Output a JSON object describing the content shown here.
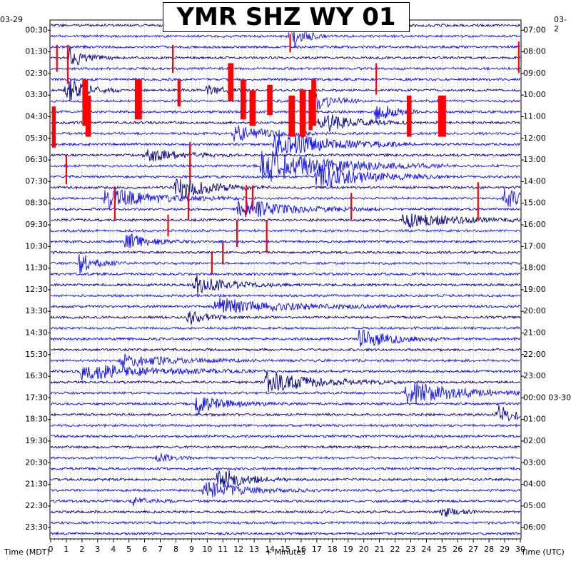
{
  "chart_data": {
    "type": "helicorder",
    "title": "YMR SHZ WY 01",
    "start_date_left": "03-29",
    "start_date_right": "03-2",
    "x_axis": {
      "label": "+ Minutes",
      "ticks": [
        "0",
        "1",
        "2",
        "3",
        "4",
        "5",
        "6",
        "7",
        "8",
        "9",
        "10",
        "11",
        "12",
        "13",
        "14",
        "15",
        "16",
        "17",
        "18",
        "19",
        "20",
        "21",
        "22",
        "23",
        "24",
        "25",
        "26",
        "27",
        "28",
        "29",
        "30"
      ],
      "range_minutes": [
        0,
        30
      ]
    },
    "left_axis": {
      "label": "Time (MDT)",
      "ticks": [
        "00:30",
        "01:30",
        "02:30",
        "03:30",
        "04:30",
        "05:30",
        "06:30",
        "07:30",
        "08:30",
        "09:30",
        "10:30",
        "11:30",
        "12:30",
        "13:30",
        "14:30",
        "15:30",
        "16:30",
        "17:30",
        "18:30",
        "19:30",
        "20:30",
        "21:30",
        "22:30",
        "23:30"
      ]
    },
    "right_axis": {
      "label": "Time (UTC)",
      "ticks": [
        "07:00",
        "08:00",
        "09:00",
        "10:00",
        "11:00",
        "12:00",
        "13:00",
        "14:00",
        "15:00",
        "16:00",
        "17:00",
        "18:00",
        "19:00",
        "20:00",
        "21:00",
        "22:00",
        "23:00",
        "00:00 03-30",
        "01:00",
        "02:00",
        "03:00",
        "04:00",
        "05:00",
        "06:00"
      ]
    },
    "trace_count": 48,
    "minutes_per_trace": 30,
    "trace_colors": [
      "#000080",
      "#1515e6",
      "#0000ff"
    ],
    "clip_color": "#ff0000",
    "grid": true,
    "events": [
      {
        "trace": 1,
        "minute": 15.3,
        "amp": 3.5,
        "dur": 0.8
      },
      {
        "trace": 3,
        "minute": 1.2,
        "amp": 2.5,
        "dur": 1.0
      },
      {
        "trace": 6,
        "minute": 1.0,
        "amp": 3.0,
        "dur": 1.2
      },
      {
        "trace": 6,
        "minute": 10.0,
        "amp": 1.5,
        "dur": 1.0
      },
      {
        "trace": 7,
        "minute": 16.8,
        "amp": 3.0,
        "dur": 1.0
      },
      {
        "trace": 8,
        "minute": 20.8,
        "amp": 2.5,
        "dur": 1.0
      },
      {
        "trace": 9,
        "minute": 17.2,
        "amp": 2.5,
        "dur": 2.0
      },
      {
        "trace": 10,
        "minute": 11.7,
        "amp": 2.0,
        "dur": 2.0
      },
      {
        "trace": 11,
        "minute": 14.3,
        "amp": 3.5,
        "dur": 3.0
      },
      {
        "trace": 12,
        "minute": 6.0,
        "amp": 1.8,
        "dur": 2.0
      },
      {
        "trace": 13,
        "minute": 13.5,
        "amp": 4.0,
        "dur": 4.0
      },
      {
        "trace": 14,
        "minute": 17.0,
        "amp": 3.0,
        "dur": 3.0
      },
      {
        "trace": 15,
        "minute": 8.0,
        "amp": 3.0,
        "dur": 2.0
      },
      {
        "trace": 16,
        "minute": 3.5,
        "amp": 2.5,
        "dur": 3.0
      },
      {
        "trace": 16,
        "minute": 29.0,
        "amp": 2.5,
        "dur": 2.0
      },
      {
        "trace": 17,
        "minute": 12.0,
        "amp": 2.5,
        "dur": 3.0
      },
      {
        "trace": 18,
        "minute": 22.5,
        "amp": 2.0,
        "dur": 3.0
      },
      {
        "trace": 20,
        "minute": 4.8,
        "amp": 2.0,
        "dur": 1.5
      },
      {
        "trace": 22,
        "minute": 1.8,
        "amp": 2.5,
        "dur": 1.0
      },
      {
        "trace": 24,
        "minute": 9.2,
        "amp": 2.5,
        "dur": 2.0
      },
      {
        "trace": 26,
        "minute": 10.5,
        "amp": 2.0,
        "dur": 4.0
      },
      {
        "trace": 27,
        "minute": 8.8,
        "amp": 1.8,
        "dur": 1.0
      },
      {
        "trace": 29,
        "minute": 19.7,
        "amp": 2.2,
        "dur": 2.0
      },
      {
        "trace": 31,
        "minute": 4.5,
        "amp": 1.5,
        "dur": 3.0
      },
      {
        "trace": 32,
        "minute": 2.0,
        "amp": 2.0,
        "dur": 4.0
      },
      {
        "trace": 33,
        "minute": 13.8,
        "amp": 2.5,
        "dur": 3.0
      },
      {
        "trace": 34,
        "minute": 22.7,
        "amp": 3.0,
        "dur": 3.0
      },
      {
        "trace": 35,
        "minute": 9.3,
        "amp": 2.0,
        "dur": 2.0
      },
      {
        "trace": 36,
        "minute": 28.5,
        "amp": 2.0,
        "dur": 1.5
      },
      {
        "trace": 40,
        "minute": 6.8,
        "amp": 1.5,
        "dur": 0.8
      },
      {
        "trace": 42,
        "minute": 10.7,
        "amp": 3.0,
        "dur": 1.5
      },
      {
        "trace": 43,
        "minute": 9.8,
        "amp": 2.0,
        "dur": 2.5
      },
      {
        "trace": 44,
        "minute": 5.2,
        "amp": 1.2,
        "dur": 1.0
      },
      {
        "trace": 45,
        "minute": 25.0,
        "amp": 1.5,
        "dur": 0.8
      }
    ],
    "clips": [
      {
        "trace": 1,
        "minute": 15.3,
        "from_trace": 0.8,
        "to_trace": 2.5
      },
      {
        "trace": 1,
        "minute": 29.9,
        "from_trace": 1.5,
        "to_trace": 4.4
      },
      {
        "trace": 2,
        "minute": 0.4,
        "from_trace": 1.8,
        "to_trace": 4.3
      },
      {
        "trace": 2,
        "minute": 1.1,
        "from_trace": 1.8,
        "to_trace": 5.4
      },
      {
        "trace": 2,
        "minute": 7.8,
        "from_trace": 1.8,
        "to_trace": 4.4
      },
      {
        "trace": 4,
        "minute": 11.5,
        "from_trace": 3.5,
        "to_trace": 7.0,
        "width": 0.35
      },
      {
        "trace": 4,
        "minute": 20.8,
        "from_trace": 3.5,
        "to_trace": 6.4
      },
      {
        "trace": 6,
        "minute": 2.2,
        "from_trace": 5.0,
        "to_trace": 9.3,
        "width": 0.35
      },
      {
        "trace": 6,
        "minute": 5.6,
        "from_trace": 5.0,
        "to_trace": 8.7,
        "width": 0.45
      },
      {
        "trace": 6,
        "minute": 12.3,
        "from_trace": 5.0,
        "to_trace": 8.7,
        "width": 0.35
      },
      {
        "trace": 5,
        "minute": 16.8,
        "from_trace": 5.0,
        "to_trace": 9.3,
        "width": 0.3
      },
      {
        "trace": 6,
        "minute": 14.0,
        "from_trace": 5.5,
        "to_trace": 8.3,
        "width": 0.35
      },
      {
        "trace": 7,
        "minute": 12.9,
        "from_trace": 6.0,
        "to_trace": 9.3,
        "width": 0.4
      },
      {
        "trace": 7,
        "minute": 15.4,
        "from_trace": 6.5,
        "to_trace": 10.3,
        "width": 0.4
      },
      {
        "trace": 7,
        "minute": 16.1,
        "from_trace": 6.0,
        "to_trace": 10.3,
        "width": 0.4
      },
      {
        "trace": 7,
        "minute": 16.6,
        "from_trace": 6.0,
        "to_trace": 9.7,
        "width": 0.25
      },
      {
        "trace": 7,
        "minute": 2.4,
        "from_trace": 6.5,
        "to_trace": 10.3,
        "width": 0.35
      },
      {
        "trace": 7,
        "minute": 22.9,
        "from_trace": 6.5,
        "to_trace": 10.3,
        "width": 0.3
      },
      {
        "trace": 7,
        "minute": 25.0,
        "from_trace": 6.5,
        "to_trace": 10.3,
        "width": 0.5
      },
      {
        "trace": 8,
        "minute": 8.2,
        "from_trace": 5.0,
        "to_trace": 7.5,
        "width": 0.2
      },
      {
        "trace": 8,
        "minute": 0.2,
        "from_trace": 7.5,
        "to_trace": 11.3,
        "width": 0.25
      },
      {
        "trace": 12,
        "minute": 8.9,
        "from_trace": 10.8,
        "to_trace": 14.3
      },
      {
        "trace": 13,
        "minute": 1.0,
        "from_trace": 12.0,
        "to_trace": 14.7
      },
      {
        "trace": 15,
        "minute": 12.5,
        "from_trace": 14.8,
        "to_trace": 17.5
      },
      {
        "trace": 15,
        "minute": 12.9,
        "from_trace": 14.8,
        "to_trace": 17.0
      },
      {
        "trace": 15,
        "minute": 4.1,
        "from_trace": 15.0,
        "to_trace": 18.0
      },
      {
        "trace": 15,
        "minute": 8.8,
        "from_trace": 15.5,
        "to_trace": 18.0
      },
      {
        "trace": 15,
        "minute": 19.2,
        "from_trace": 15.5,
        "to_trace": 18.0
      },
      {
        "trace": 14,
        "minute": 27.3,
        "from_trace": 14.5,
        "to_trace": 18.0
      },
      {
        "trace": 18,
        "minute": 7.5,
        "from_trace": 17.5,
        "to_trace": 19.5
      },
      {
        "trace": 18,
        "minute": 11.9,
        "from_trace": 18.0,
        "to_trace": 20.5
      },
      {
        "trace": 18,
        "minute": 13.8,
        "from_trace": 18.0,
        "to_trace": 21.0
      },
      {
        "trace": 20,
        "minute": 11.0,
        "from_trace": 20.0,
        "to_trace": 22.0
      },
      {
        "trace": 21,
        "minute": 10.3,
        "from_trace": 21.0,
        "to_trace": 23.0
      }
    ]
  }
}
